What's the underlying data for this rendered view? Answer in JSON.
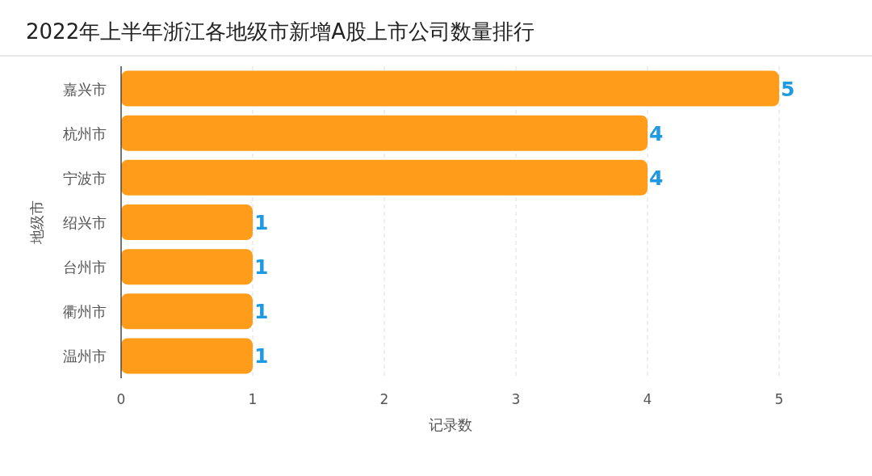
{
  "chart_data": {
    "type": "bar",
    "orientation": "horizontal",
    "title": "2022年上半年浙江各地级市新增A股上市公司数量排行",
    "xlabel": "记录数",
    "ylabel": "地级市",
    "categories": [
      "嘉兴市",
      "杭州市",
      "宁波市",
      "绍兴市",
      "台州市",
      "衢州市",
      "温州市"
    ],
    "values": [
      5,
      4,
      4,
      1,
      1,
      1,
      1
    ],
    "color": "#ff9c1a",
    "xlim": [
      0,
      5
    ],
    "xticks": [
      0,
      1,
      2,
      3,
      4,
      5
    ],
    "grid": "x",
    "data_labels": true
  }
}
